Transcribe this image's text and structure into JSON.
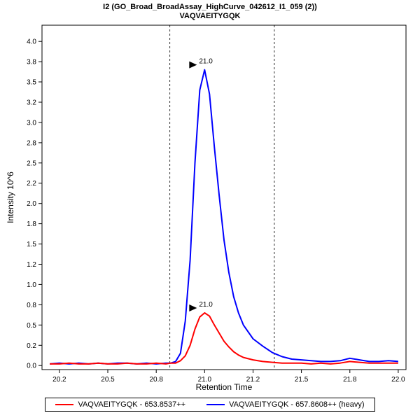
{
  "title": {
    "line1": "I2 (GO_Broad_BroadAssay_HighCurve_042612_I1_059 (2))",
    "line2": "VAQVAEITYGQK"
  },
  "axes": {
    "x_label": "Retention Time",
    "y_label": "Intensity 10^6"
  },
  "legend": {
    "items": [
      {
        "label": "VAQVAEITYGQK - 653.8537++",
        "color": "#ff0000"
      },
      {
        "label": "VAQVAEITYGQK - 657.8608++ (heavy)",
        "color": "#0000ff"
      }
    ]
  },
  "chart_data": {
    "type": "line",
    "title": "I2 (GO_Broad_BroadAssay_HighCurve_042612_I1_059 (2))",
    "subtitle": "VAQVAEITYGQK",
    "xlabel": "Retention Time",
    "ylabel": "Intensity 10^6",
    "legend_position": "bottom",
    "grid": false,
    "xlim": [
      20.16,
      22.04
    ],
    "ylim": [
      -0.05,
      4.2
    ],
    "xticks": {
      "values": [
        20.25,
        20.5,
        20.75,
        21.0,
        21.25,
        21.5,
        21.75,
        22.0
      ],
      "labels": [
        "20.2",
        "20.5",
        "20.8",
        "21.0",
        "21.2",
        "21.5",
        "21.8",
        "22.0"
      ]
    },
    "yticks": {
      "values": [
        0,
        0.25,
        0.5,
        0.75,
        1.0,
        1.25,
        1.5,
        1.75,
        2.0,
        2.25,
        2.5,
        2.75,
        3.0,
        3.25,
        3.5,
        3.75,
        4.0
      ],
      "labels": [
        "0.0",
        "0.2",
        "0.5",
        "0.8",
        "1.0",
        "1.2",
        "1.5",
        "1.8",
        "2.0",
        "2.2",
        "2.5",
        "2.8",
        "3.0",
        "3.2",
        "3.5",
        "3.8",
        "4.0"
      ]
    },
    "x": [
      20.2,
      20.25,
      20.3,
      20.35,
      20.4,
      20.45,
      20.5,
      20.55,
      20.6,
      20.65,
      20.7,
      20.75,
      20.8,
      20.825,
      20.85,
      20.875,
      20.9,
      20.925,
      20.95,
      20.975,
      21.0,
      21.025,
      21.05,
      21.075,
      21.1,
      21.125,
      21.15,
      21.175,
      21.2,
      21.25,
      21.3,
      21.35,
      21.4,
      21.45,
      21.5,
      21.55,
      21.6,
      21.65,
      21.7,
      21.75,
      21.8,
      21.85,
      21.9,
      21.95,
      22.0
    ],
    "series": [
      {
        "name": "VAQVAEITYGQK - 653.8537++",
        "color": "#ff0000",
        "values": [
          0.02,
          0.02,
          0.03,
          0.02,
          0.02,
          0.03,
          0.02,
          0.02,
          0.03,
          0.02,
          0.02,
          0.03,
          0.02,
          0.03,
          0.03,
          0.06,
          0.12,
          0.25,
          0.45,
          0.6,
          0.65,
          0.61,
          0.5,
          0.4,
          0.3,
          0.23,
          0.17,
          0.13,
          0.1,
          0.07,
          0.05,
          0.04,
          0.03,
          0.03,
          0.03,
          0.02,
          0.03,
          0.02,
          0.03,
          0.05,
          0.04,
          0.03,
          0.03,
          0.03,
          0.03
        ]
      },
      {
        "name": "VAQVAEITYGQK - 657.8608++ (heavy)",
        "color": "#0000ff",
        "values": [
          0.02,
          0.03,
          0.02,
          0.03,
          0.02,
          0.03,
          0.02,
          0.03,
          0.03,
          0.02,
          0.03,
          0.02,
          0.03,
          0.03,
          0.05,
          0.15,
          0.55,
          1.3,
          2.5,
          3.4,
          3.65,
          3.35,
          2.7,
          2.1,
          1.55,
          1.15,
          0.85,
          0.65,
          0.5,
          0.33,
          0.24,
          0.16,
          0.11,
          0.08,
          0.07,
          0.06,
          0.05,
          0.05,
          0.06,
          0.09,
          0.07,
          0.05,
          0.05,
          0.06,
          0.05
        ]
      }
    ],
    "peak_boundaries": {
      "x": [
        20.82,
        21.36
      ],
      "style": "dashed"
    },
    "annotations": [
      {
        "x": 21.0,
        "y": 3.65,
        "label": "21.0",
        "series": "VAQVAEITYGQK - 657.8608++ (heavy)"
      },
      {
        "x": 21.0,
        "y": 0.65,
        "label": "21.0",
        "series": "VAQVAEITYGQK - 653.8537++"
      }
    ]
  }
}
